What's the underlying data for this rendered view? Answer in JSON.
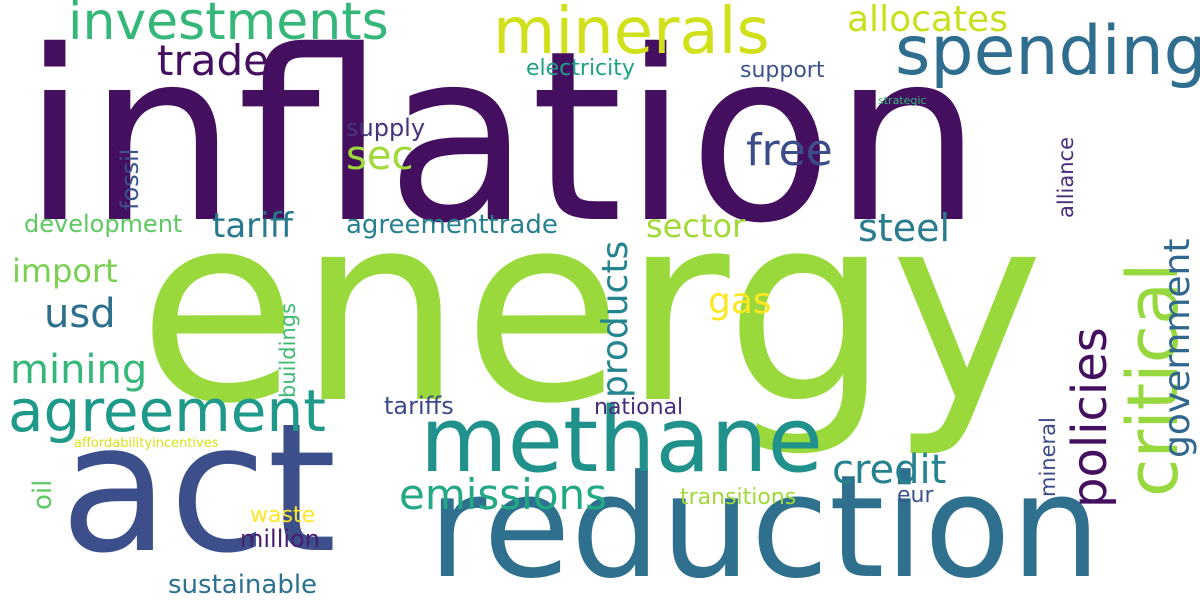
{
  "words": [
    {
      "text": "inflation",
      "color": "#440f5f"
    },
    {
      "text": "energy",
      "color": "#9ad93c"
    },
    {
      "text": "act",
      "color": "#3c4f8a"
    },
    {
      "text": "reduction",
      "color": "#2e708e"
    },
    {
      "text": "methane",
      "color": "#21918c"
    },
    {
      "text": "critical",
      "color": "#97d83f"
    },
    {
      "text": "spending",
      "color": "#2f6e8e"
    },
    {
      "text": "minerals",
      "color": "#d0e11c"
    },
    {
      "text": "investments",
      "color": "#35b779"
    },
    {
      "text": "agreement",
      "color": "#1f9a8a"
    },
    {
      "text": "policies",
      "color": "#440f5f"
    },
    {
      "text": "emissions",
      "color": "#22a884"
    },
    {
      "text": "trade",
      "color": "#440f5f"
    },
    {
      "text": "allocates",
      "color": "#c8e020"
    },
    {
      "text": "government",
      "color": "#31668e"
    },
    {
      "text": "free",
      "color": "#3c4d8a"
    },
    {
      "text": "products",
      "color": "#25858e"
    },
    {
      "text": "credit",
      "color": "#26828e"
    },
    {
      "text": "sec",
      "color": "#9fda3a"
    },
    {
      "text": "mining",
      "color": "#35b779"
    },
    {
      "text": "steel",
      "color": "#287c8e"
    },
    {
      "text": "tariff",
      "color": "#2a788e"
    },
    {
      "text": "usd",
      "color": "#2d708e"
    },
    {
      "text": "import",
      "color": "#7ad151"
    },
    {
      "text": "sector",
      "color": "#a2da37"
    },
    {
      "text": "gas",
      "color": "#fde725"
    },
    {
      "text": "sustainable",
      "color": "#2c718e"
    },
    {
      "text": "agreementtrade",
      "color": "#27808e"
    },
    {
      "text": "development",
      "color": "#5ec962"
    },
    {
      "text": "electricity",
      "color": "#1fa287"
    },
    {
      "text": "support",
      "color": "#3b528b"
    },
    {
      "text": "supply",
      "color": "#46337e"
    },
    {
      "text": "tariffs",
      "color": "#3e4989"
    },
    {
      "text": "national",
      "color": "#472d7b"
    },
    {
      "text": "transitions",
      "color": "#a0da39"
    },
    {
      "text": "million",
      "color": "#481f70"
    },
    {
      "text": "waste",
      "color": "#fde725"
    },
    {
      "text": "eur",
      "color": "#3b528b"
    },
    {
      "text": "fossil",
      "color": "#3b528b"
    },
    {
      "text": "buildings",
      "color": "#3fbc73"
    },
    {
      "text": "alliance",
      "color": "#472d7b"
    },
    {
      "text": "mineral",
      "color": "#3e4a89"
    },
    {
      "text": "oil",
      "color": "#5ec962"
    },
    {
      "text": "strategic",
      "color": "#35b779"
    },
    {
      "text": "affordabilityincentives",
      "color": "#d8e219"
    }
  ]
}
